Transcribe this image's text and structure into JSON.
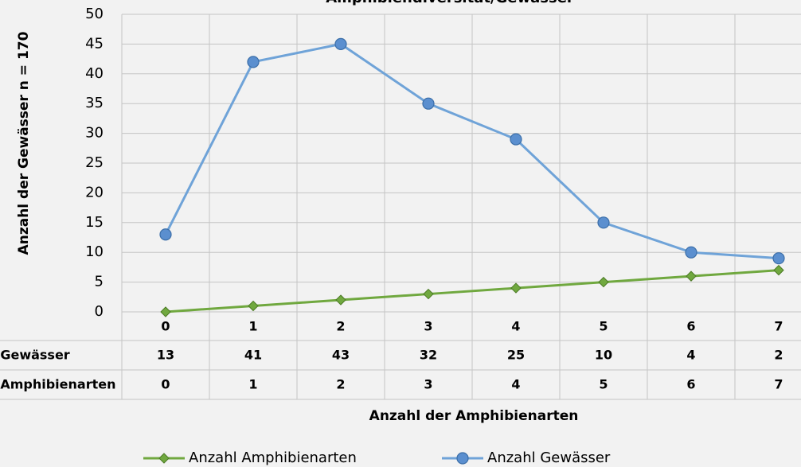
{
  "chart_data": {
    "type": "line",
    "stacked": true,
    "title": "Amphibiendiversität/Gewässer",
    "x_label": "Anzahl der Amphibienarten",
    "y_label": "Anzahl der Gewässer n = 170",
    "categories": [
      "0",
      "1",
      "2",
      "3",
      "4",
      "5",
      "6",
      "7"
    ],
    "series": [
      {
        "name": "Anzahl Amphibienarten",
        "color": "#70a83f",
        "marker": "diamond",
        "values": [
          0,
          1,
          2,
          3,
          4,
          5,
          6,
          7
        ]
      },
      {
        "name": "Anzahl Gewässer",
        "color": "#6fa3d8",
        "marker": "circle",
        "values": [
          13,
          41,
          43,
          32,
          25,
          10,
          4,
          2
        ]
      }
    ],
    "ylim": [
      0,
      50
    ],
    "yticks": [
      0,
      5,
      10,
      15,
      20,
      25,
      30,
      35,
      40,
      45,
      50
    ],
    "grid": true,
    "data_table": true,
    "legend": "bottom"
  }
}
